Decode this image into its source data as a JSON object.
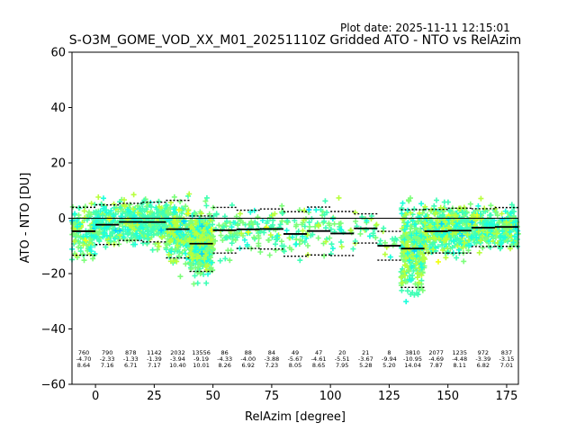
{
  "chart_data": {
    "type": "scatter",
    "plot_date": "Plot date: 2025-11-11 12:15:01",
    "title": "S-O3M_GOME_VOD_XX_M01_20251110Z Gridded ATO - NTO vs RelAzim",
    "xlabel": "RelAzim [degree]",
    "ylabel": "ATO - NTO [DU]",
    "xlim": [
      -10,
      180
    ],
    "ylim": [
      -60,
      60
    ],
    "xticks": [
      0,
      25,
      50,
      75,
      100,
      125,
      150,
      175
    ],
    "yticks": [
      -60,
      -40,
      -20,
      0,
      20,
      40,
      60
    ],
    "zero_line": 0,
    "bins": [
      {
        "x": -5,
        "count": "760",
        "mean": "-4.70",
        "std": "8.64",
        "mean_val": -4.7,
        "std_val": 8.64
      },
      {
        "x": 5,
        "count": "790",
        "mean": "-2.33",
        "std": "7.16",
        "mean_val": -2.33,
        "std_val": 7.16
      },
      {
        "x": 15,
        "count": "878",
        "mean": "-1.33",
        "std": "6.71",
        "mean_val": -1.33,
        "std_val": 6.71
      },
      {
        "x": 25,
        "count": "1142",
        "mean": "-1.39",
        "std": "7.17",
        "mean_val": -1.39,
        "std_val": 7.17
      },
      {
        "x": 35,
        "count": "2032",
        "mean": "-3.94",
        "std": "10.40",
        "mean_val": -3.94,
        "std_val": 10.4
      },
      {
        "x": 45,
        "count": "13556",
        "mean": "-9.19",
        "std": "10.01",
        "mean_val": -9.19,
        "std_val": 10.01
      },
      {
        "x": 55,
        "count": "86",
        "mean": "-4.33",
        "std": "8.26",
        "mean_val": -4.33,
        "std_val": 8.26
      },
      {
        "x": 65,
        "count": "88",
        "mean": "-4.00",
        "std": "6.92",
        "mean_val": -4.0,
        "std_val": 6.92
      },
      {
        "x": 75,
        "count": "84",
        "mean": "-3.88",
        "std": "7.23",
        "mean_val": -3.88,
        "std_val": 7.23
      },
      {
        "x": 85,
        "count": "49",
        "mean": "-5.67",
        "std": "8.05",
        "mean_val": -5.67,
        "std_val": 8.05
      },
      {
        "x": 95,
        "count": "47",
        "mean": "-4.61",
        "std": "8.65",
        "mean_val": -4.61,
        "std_val": 8.65
      },
      {
        "x": 105,
        "count": "20",
        "mean": "-5.51",
        "std": "7.95",
        "mean_val": -5.51,
        "std_val": 7.95
      },
      {
        "x": 115,
        "count": "21",
        "mean": "-3.67",
        "std": "5.28",
        "mean_val": -3.67,
        "std_val": 5.28
      },
      {
        "x": 125,
        "count": "8",
        "mean": "-9.94",
        "std": "5.20",
        "mean_val": -9.94,
        "std_val": 5.2
      },
      {
        "x": 135,
        "count": "3810",
        "mean": "-10.95",
        "std": "14.04",
        "mean_val": -10.95,
        "std_val": 14.04
      },
      {
        "x": 145,
        "count": "2077",
        "mean": "-4.69",
        "std": "7.87",
        "mean_val": -4.69,
        "std_val": 7.87
      },
      {
        "x": 155,
        "count": "1235",
        "mean": "-4.48",
        "std": "8.11",
        "mean_val": -4.48,
        "std_val": 8.11
      },
      {
        "x": 165,
        "count": "972",
        "mean": "-3.39",
        "std": "6.82",
        "mean_val": -3.39,
        "std_val": 6.82
      },
      {
        "x": 175,
        "count": "837",
        "mean": "-3.15",
        "std": "7.01",
        "mean_val": -3.15,
        "std_val": 7.01
      }
    ],
    "point_colors": [
      "#ffd000",
      "#f2ff10",
      "#b8ff3c",
      "#7dff7a",
      "#40ffb6",
      "#1cffdc",
      "#00d4ff",
      "#0096ff",
      "#0010ff"
    ],
    "mean_color": "#000000"
  }
}
